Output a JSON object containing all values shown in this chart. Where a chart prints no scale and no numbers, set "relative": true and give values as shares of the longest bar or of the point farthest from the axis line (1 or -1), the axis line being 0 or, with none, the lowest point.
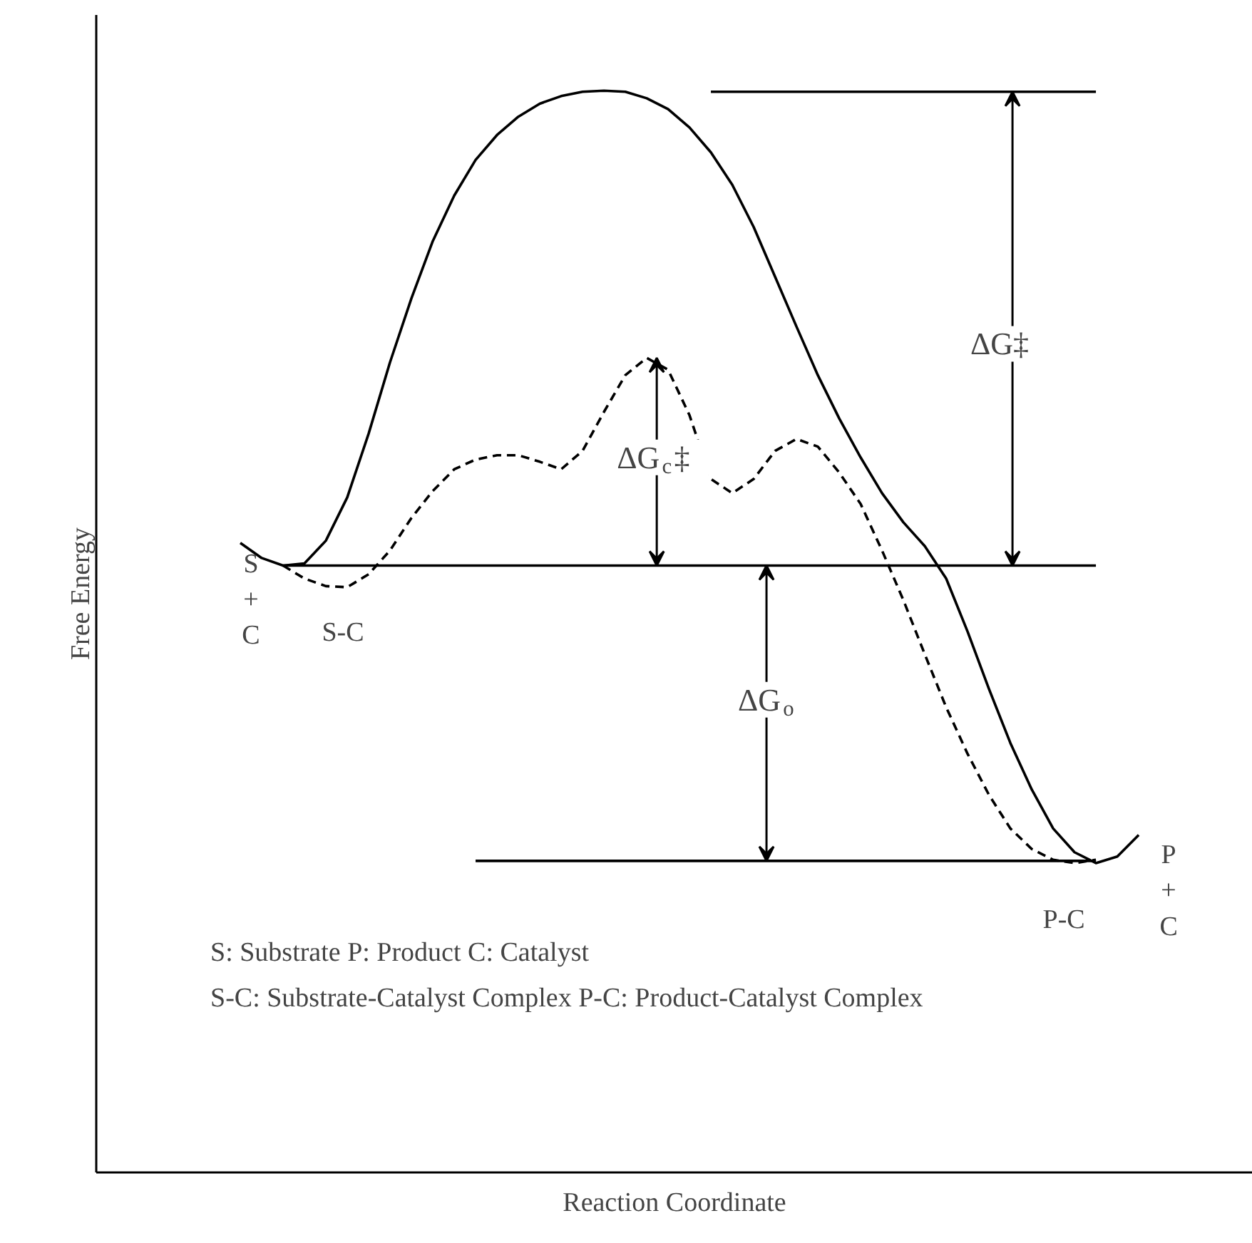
{
  "chart_data": {
    "type": "line",
    "relative": true,
    "xlabel": "Reaction Coordinate",
    "ylabel": "Free Energy",
    "categories": [
      null,
      null,
      null,
      null,
      null,
      null,
      null,
      null,
      null,
      null,
      null,
      null,
      null,
      null,
      null,
      null,
      null,
      null,
      null,
      null,
      null,
      null,
      null,
      null,
      null,
      null,
      null,
      null,
      null,
      null,
      null,
      null,
      null,
      null,
      null,
      null,
      null,
      null,
      null,
      null,
      null,
      null,
      null
    ],
    "series": [
      {
        "color": "#000000",
        "line_style": "solid",
        "values": [
          0.582,
          0.568,
          0.561,
          0.563,
          0.584,
          0.624,
          0.683,
          0.749,
          0.808,
          0.861,
          0.903,
          0.936,
          0.959,
          0.976,
          0.988,
          0.995,
          0.999,
          1.0,
          0.999,
          0.993,
          0.983,
          0.966,
          0.943,
          0.913,
          0.874,
          0.828,
          0.782,
          0.737,
          0.697,
          0.661,
          0.628,
          0.601,
          0.579,
          0.549,
          0.5,
          0.447,
          0.397,
          0.354,
          0.318,
          0.296,
          0.286,
          0.292,
          0.312
        ]
      },
      {
        "color": "#000000",
        "line_style": "dashed",
        "values": [
          null,
          null,
          0.561,
          0.549,
          0.542,
          0.541,
          0.553,
          0.575,
          0.605,
          0.63,
          0.65,
          0.659,
          0.663,
          0.663,
          0.657,
          0.65,
          0.667,
          0.703,
          0.737,
          0.753,
          0.742,
          0.7,
          0.641,
          0.628,
          0.641,
          0.667,
          0.678,
          0.671,
          0.647,
          0.618,
          0.575,
          0.529,
          0.479,
          0.43,
          0.387,
          0.349,
          0.318,
          0.299,
          0.289,
          0.286,
          0.289,
          null,
          null
        ]
      },
      {
        "color": "#000000",
        "line_style": "solid",
        "values": [
          null,
          null,
          null,
          null,
          null,
          null,
          null,
          null,
          null,
          null,
          null,
          null,
          null,
          null,
          null,
          null,
          null,
          null,
          null,
          null,
          null,
          null,
          0.999,
          0.999,
          0.999,
          0.999,
          0.999,
          0.999,
          0.999,
          0.999,
          0.999,
          0.999,
          0.999,
          0.999,
          0.999,
          0.999,
          0.999,
          0.999,
          0.999,
          0.999,
          0.999,
          null,
          null
        ]
      },
      {
        "color": "#000000",
        "line_style": "solid",
        "values": [
          null,
          null,
          0.561,
          0.561,
          0.561,
          0.561,
          0.561,
          0.561,
          0.561,
          0.561,
          0.561,
          0.561,
          0.561,
          0.561,
          0.561,
          0.561,
          0.561,
          0.561,
          0.561,
          0.561,
          0.561,
          0.561,
          0.561,
          0.561,
          0.561,
          0.561,
          0.561,
          0.561,
          0.561,
          0.561,
          0.561,
          0.561,
          0.561,
          0.561,
          0.561,
          0.561,
          0.561,
          0.561,
          0.561,
          0.561,
          0.561,
          null,
          null
        ]
      },
      {
        "color": "#000000",
        "line_style": "solid",
        "values": [
          null,
          null,
          null,
          null,
          null,
          null,
          null,
          null,
          null,
          null,
          null,
          0.288,
          0.288,
          0.288,
          0.288,
          0.288,
          0.288,
          0.288,
          0.288,
          0.288,
          0.288,
          0.288,
          0.288,
          0.288,
          0.288,
          0.288,
          0.288,
          0.288,
          0.288,
          0.288,
          0.288,
          0.288,
          0.288,
          0.288,
          0.288,
          0.288,
          0.288,
          0.288,
          0.288,
          0.288,
          0.288,
          null,
          null
        ]
      }
    ],
    "annotations": [
      "ΔG‡",
      "ΔG$_{c}$‡",
      "ΔG$_{o}$",
      "S\n+\nC",
      "S-C",
      "P-C",
      "P\n+\nC",
      "S: Substrate   P: Product   C: Catalyst",
      "S-C: Substrate-Catalyst Complex   P-C: Product-Catalyst Complex"
    ]
  }
}
